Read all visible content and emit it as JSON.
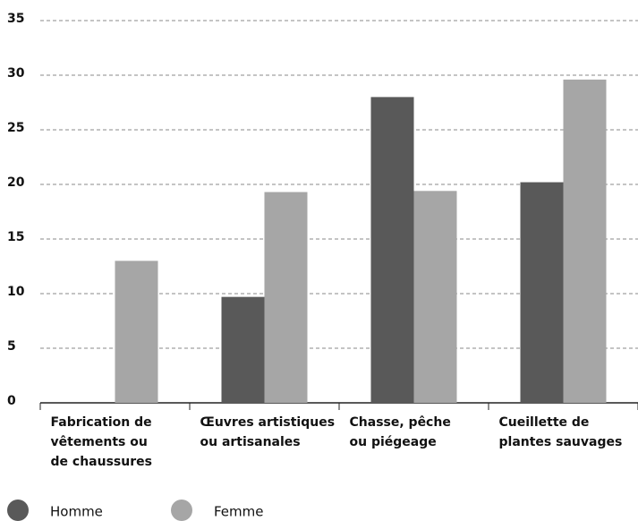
{
  "chart_data": {
    "type": "bar",
    "categories": [
      "Fabrication de\nvêtements ou\nde chaussures",
      "Œuvres artistiques\nou artisanales",
      "Chasse, pêche\nou piégeage",
      "Cueillette de\nplantes sauvages"
    ],
    "series": [
      {
        "name": "Homme",
        "color": "#595959",
        "values": [
          null,
          9.7,
          28,
          20.2
        ]
      },
      {
        "name": "Femme",
        "color": "#a6a6a6",
        "values": [
          13,
          19.3,
          19.4,
          29.6
        ]
      }
    ],
    "ylim": [
      0,
      35
    ],
    "yticks": [
      0,
      5,
      10,
      15,
      20,
      25,
      30,
      35
    ],
    "grid": true,
    "legend": "bottom-left"
  }
}
